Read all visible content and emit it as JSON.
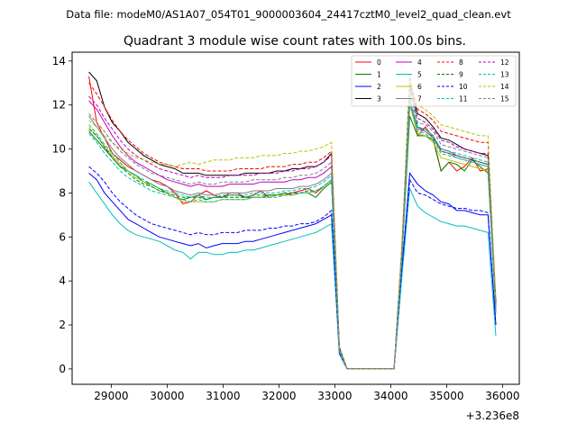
{
  "suptitle": "Data file: modeM0/AS1A07_054T01_9000003604_24417cztM0_level2_quad_clean.evt",
  "chart_data": {
    "type": "line",
    "title": "Quadrant 3 module wise count rates with 100.0s bins.",
    "xlabel": "",
    "ylabel": "",
    "x_offset_label": "+3.236e8",
    "xlim": [
      28300,
      36300
    ],
    "ylim": [
      -0.7,
      14.4
    ],
    "xticks": [
      29000,
      30000,
      31000,
      32000,
      33000,
      34000,
      35000,
      36000
    ],
    "yticks": [
      0,
      2,
      4,
      6,
      8,
      10,
      12,
      14
    ],
    "legend_position": "top-right",
    "series": [
      {
        "name": "0",
        "color": "#ff0000",
        "dash": "solid",
        "values": [
          13.3,
          11.2,
          10.5,
          9.8,
          9.5,
          9.2,
          9.0,
          8.8,
          8.6,
          8.5,
          8.3,
          8.0,
          7.5,
          7.6,
          7.9,
          8.1,
          7.9,
          7.8,
          8.0,
          8.0,
          7.8,
          7.9,
          8.1,
          7.8,
          7.9,
          7.9,
          8.0,
          8.1,
          8.2,
          8.0,
          8.3,
          8.6,
          0.8,
          0.0,
          0.0,
          0.0,
          0.0,
          0.0,
          0.0,
          0.0,
          5.0,
          12.3,
          10.6,
          11.0,
          10.5,
          9.0,
          9.4,
          9.0,
          9.2,
          9.6,
          9.0,
          9.1,
          3.0
        ]
      },
      {
        "name": "1",
        "color": "#008000",
        "dash": "solid",
        "values": [
          10.8,
          10.4,
          10.0,
          9.6,
          9.2,
          9.0,
          8.8,
          8.5,
          8.4,
          8.2,
          8.0,
          7.8,
          7.7,
          7.8,
          7.9,
          7.7,
          7.8,
          7.8,
          7.9,
          7.9,
          7.8,
          7.8,
          7.8,
          7.9,
          7.9,
          8.0,
          7.9,
          8.0,
          8.0,
          7.8,
          8.2,
          8.5,
          0.8,
          0.0,
          0.0,
          0.0,
          0.0,
          0.0,
          0.0,
          0.0,
          5.0,
          11.5,
          10.6,
          10.6,
          10.4,
          9.0,
          9.4,
          9.3,
          9.0,
          9.5,
          9.2,
          8.9,
          3.0
        ]
      },
      {
        "name": "2",
        "color": "#0000ff",
        "dash": "solid",
        "values": [
          8.9,
          8.6,
          8.0,
          7.6,
          7.2,
          6.8,
          6.6,
          6.4,
          6.2,
          6.0,
          5.9,
          5.8,
          5.7,
          5.6,
          5.7,
          5.5,
          5.6,
          5.7,
          5.7,
          5.7,
          5.8,
          5.8,
          5.9,
          6.0,
          6.1,
          6.2,
          6.3,
          6.4,
          6.5,
          6.6,
          6.8,
          7.0,
          0.7,
          0.0,
          0.0,
          0.0,
          0.0,
          0.0,
          0.0,
          0.0,
          4.5,
          8.9,
          8.4,
          8.1,
          7.9,
          7.6,
          7.5,
          7.2,
          7.2,
          7.1,
          7.0,
          7.0,
          2.0
        ]
      },
      {
        "name": "3",
        "color": "#000000",
        "dash": "solid",
        "values": [
          13.5,
          13.1,
          11.9,
          11.2,
          10.8,
          10.3,
          10.0,
          9.7,
          9.5,
          9.3,
          9.2,
          9.1,
          8.9,
          8.9,
          8.9,
          8.8,
          8.8,
          8.8,
          8.8,
          8.8,
          8.9,
          8.9,
          8.9,
          8.9,
          9.0,
          9.0,
          9.1,
          9.1,
          9.2,
          9.2,
          9.4,
          9.8,
          1.0,
          0.0,
          0.0,
          0.0,
          0.0,
          0.0,
          0.0,
          0.0,
          5.5,
          12.9,
          11.6,
          11.4,
          11.0,
          10.5,
          10.4,
          10.2,
          10.0,
          9.9,
          9.8,
          9.7,
          3.0
        ]
      },
      {
        "name": "4",
        "color": "#bf00bf",
        "dash": "solid",
        "values": [
          12.2,
          11.8,
          11.2,
          10.6,
          10.1,
          9.7,
          9.4,
          9.2,
          9.0,
          8.8,
          8.6,
          8.5,
          8.4,
          8.3,
          8.4,
          8.3,
          8.3,
          8.3,
          8.4,
          8.4,
          8.4,
          8.4,
          8.5,
          8.5,
          8.5,
          8.5,
          8.6,
          8.6,
          8.7,
          8.7,
          8.9,
          9.2,
          0.9,
          0.0,
          0.0,
          0.0,
          0.0,
          0.0,
          0.0,
          0.0,
          5.2,
          12.1,
          11.0,
          10.8,
          10.5,
          10.0,
          9.9,
          9.7,
          9.6,
          9.5,
          9.4,
          9.3,
          2.8
        ]
      },
      {
        "name": "5",
        "color": "#00bfbf",
        "dash": "solid",
        "values": [
          8.5,
          8.0,
          7.5,
          7.0,
          6.6,
          6.3,
          6.1,
          6.0,
          5.9,
          5.8,
          5.6,
          5.4,
          5.3,
          5.0,
          5.3,
          5.3,
          5.2,
          5.2,
          5.3,
          5.3,
          5.4,
          5.4,
          5.5,
          5.6,
          5.7,
          5.8,
          5.9,
          6.0,
          6.1,
          6.2,
          6.4,
          6.6,
          0.7,
          0.0,
          0.0,
          0.0,
          0.0,
          0.0,
          0.0,
          0.0,
          4.2,
          8.2,
          7.4,
          7.1,
          6.9,
          6.7,
          6.6,
          6.5,
          6.5,
          6.4,
          6.3,
          6.2,
          1.5
        ]
      },
      {
        "name": "6",
        "color": "#bfbf00",
        "dash": "solid",
        "values": [
          11.0,
          10.6,
          10.1,
          9.7,
          9.3,
          9.0,
          8.7,
          8.5,
          8.3,
          8.1,
          8.0,
          7.8,
          7.6,
          7.6,
          7.6,
          7.6,
          7.6,
          7.7,
          7.7,
          7.7,
          7.7,
          7.8,
          7.8,
          7.8,
          7.9,
          7.9,
          7.9,
          8.0,
          8.0,
          8.1,
          8.3,
          8.6,
          0.8,
          0.0,
          0.0,
          0.0,
          0.0,
          0.0,
          0.0,
          0.0,
          5.0,
          12.0,
          10.7,
          10.6,
          10.3,
          9.6,
          9.5,
          9.4,
          9.3,
          9.2,
          9.1,
          9.0,
          2.5
        ]
      },
      {
        "name": "7",
        "color": "#808080",
        "dash": "solid",
        "values": [
          11.5,
          11.0,
          10.5,
          10.0,
          9.6,
          9.3,
          9.0,
          8.8,
          8.6,
          8.4,
          8.3,
          8.1,
          8.0,
          7.9,
          8.0,
          7.9,
          7.9,
          8.0,
          8.0,
          8.0,
          8.0,
          8.1,
          8.1,
          8.1,
          8.2,
          8.2,
          8.2,
          8.3,
          8.3,
          8.4,
          8.6,
          8.9,
          0.8,
          0.0,
          0.0,
          0.0,
          0.0,
          0.0,
          0.0,
          0.0,
          5.1,
          12.2,
          10.9,
          10.8,
          10.5,
          9.9,
          9.8,
          9.6,
          9.5,
          9.4,
          9.3,
          9.2,
          2.6
        ]
      },
      {
        "name": "8",
        "color": "#ff0000",
        "dash": "dashed",
        "values": [
          13.0,
          12.5,
          11.9,
          11.3,
          10.8,
          10.4,
          10.1,
          9.8,
          9.6,
          9.4,
          9.3,
          9.2,
          9.1,
          9.1,
          9.1,
          9.0,
          9.0,
          9.0,
          9.0,
          9.1,
          9.1,
          9.1,
          9.1,
          9.2,
          9.2,
          9.2,
          9.3,
          9.3,
          9.4,
          9.4,
          9.6,
          9.9,
          1.0,
          0.0,
          0.0,
          0.0,
          0.0,
          0.0,
          0.0,
          0.0,
          5.6,
          13.0,
          11.8,
          11.6,
          11.3,
          10.8,
          10.7,
          10.6,
          10.5,
          10.4,
          10.3,
          10.3,
          3.0
        ]
      },
      {
        "name": "9",
        "color": "#008000",
        "dash": "dashed",
        "values": [
          10.9,
          10.6,
          10.1,
          9.6,
          9.2,
          8.9,
          8.6,
          8.4,
          8.3,
          8.1,
          8.0,
          7.9,
          7.8,
          7.8,
          7.8,
          7.7,
          7.8,
          7.8,
          7.8,
          7.8,
          7.8,
          7.9,
          7.9,
          7.9,
          7.9,
          8.0,
          8.0,
          8.0,
          8.1,
          8.1,
          8.3,
          8.6,
          0.8,
          0.0,
          0.0,
          0.0,
          0.0,
          0.0,
          0.0,
          0.0,
          5.2,
          13.4,
          11.0,
          10.9,
          10.6,
          9.9,
          9.8,
          9.7,
          9.6,
          9.5,
          9.4,
          9.3,
          2.8
        ]
      },
      {
        "name": "10",
        "color": "#0000ff",
        "dash": "dashed",
        "values": [
          9.2,
          8.9,
          8.5,
          8.0,
          7.6,
          7.3,
          7.0,
          6.8,
          6.6,
          6.5,
          6.4,
          6.3,
          6.2,
          6.1,
          6.2,
          6.1,
          6.1,
          6.2,
          6.2,
          6.2,
          6.3,
          6.3,
          6.3,
          6.4,
          6.4,
          6.5,
          6.5,
          6.6,
          6.6,
          6.7,
          6.9,
          7.2,
          0.7,
          0.0,
          0.0,
          0.0,
          0.0,
          0.0,
          0.0,
          0.0,
          4.6,
          8.6,
          8.0,
          7.9,
          7.7,
          7.5,
          7.4,
          7.3,
          7.3,
          7.2,
          7.2,
          7.1,
          2.0
        ]
      },
      {
        "name": "11",
        "color": "#00bfbf",
        "dash": "dashed",
        "values": [
          11.1,
          10.7,
          10.2,
          9.8,
          9.4,
          9.0,
          8.8,
          8.6,
          8.4,
          8.2,
          8.1,
          8.0,
          7.9,
          7.8,
          7.9,
          7.8,
          7.8,
          7.9,
          7.9,
          7.9,
          7.9,
          8.0,
          8.0,
          8.0,
          8.0,
          8.1,
          8.1,
          8.2,
          8.2,
          8.3,
          8.5,
          8.8,
          0.8,
          0.0,
          0.0,
          0.0,
          0.0,
          0.0,
          0.0,
          0.0,
          5.1,
          12.3,
          11.0,
          10.9,
          10.6,
          10.0,
          9.9,
          9.8,
          9.7,
          9.6,
          9.5,
          9.4,
          2.7
        ]
      },
      {
        "name": "12",
        "color": "#bf00bf",
        "dash": "dashed",
        "values": [
          12.4,
          12.0,
          11.4,
          10.9,
          10.4,
          10.0,
          9.7,
          9.5,
          9.3,
          9.1,
          9.0,
          8.9,
          8.8,
          8.7,
          8.8,
          8.7,
          8.7,
          8.7,
          8.8,
          8.8,
          8.8,
          8.8,
          8.9,
          8.9,
          8.9,
          9.0,
          9.0,
          9.1,
          9.1,
          9.2,
          9.4,
          9.7,
          0.9,
          0.0,
          0.0,
          0.0,
          0.0,
          0.0,
          0.0,
          0.0,
          5.4,
          12.7,
          11.4,
          11.2,
          10.9,
          10.4,
          10.3,
          10.1,
          10.0,
          9.9,
          9.8,
          9.8,
          2.9
        ]
      },
      {
        "name": "13",
        "color": "#00bfbf",
        "dash": "dashed",
        "values": [
          10.7,
          10.3,
          9.8,
          9.4,
          9.0,
          8.7,
          8.5,
          8.3,
          8.1,
          8.0,
          7.9,
          7.8,
          7.7,
          7.6,
          7.7,
          7.6,
          7.6,
          7.7,
          7.7,
          7.7,
          7.7,
          7.8,
          7.8,
          7.8,
          7.8,
          7.9,
          7.9,
          8.0,
          8.0,
          8.1,
          8.3,
          8.6,
          0.8,
          0.0,
          0.0,
          0.0,
          0.0,
          0.0,
          0.0,
          0.0,
          5.0,
          12.1,
          10.8,
          10.7,
          10.4,
          9.8,
          9.7,
          9.6,
          9.5,
          9.4,
          9.3,
          9.2,
          2.6
        ]
      },
      {
        "name": "14",
        "color": "#bfbf00",
        "dash": "dashed",
        "values": [
          11.3,
          11.0,
          10.6,
          10.3,
          10.0,
          9.8,
          9.6,
          9.5,
          9.4,
          9.3,
          9.3,
          9.2,
          9.3,
          9.4,
          9.3,
          9.4,
          9.5,
          9.5,
          9.5,
          9.6,
          9.6,
          9.6,
          9.7,
          9.7,
          9.7,
          9.8,
          9.8,
          9.9,
          9.9,
          10.0,
          10.1,
          10.3,
          1.0,
          0.0,
          0.0,
          0.0,
          0.0,
          0.0,
          0.0,
          0.0,
          5.7,
          13.1,
          12.0,
          11.8,
          11.5,
          11.1,
          11.0,
          10.9,
          10.8,
          10.7,
          10.6,
          10.6,
          3.2
        ]
      },
      {
        "name": "15",
        "color": "#808080",
        "dash": "dashed",
        "values": [
          11.6,
          11.2,
          10.8,
          10.3,
          9.9,
          9.6,
          9.3,
          9.1,
          8.9,
          8.8,
          8.7,
          8.6,
          8.5,
          8.4,
          8.5,
          8.4,
          8.4,
          8.5,
          8.5,
          8.5,
          8.5,
          8.6,
          8.6,
          8.6,
          8.6,
          8.7,
          8.7,
          8.8,
          8.8,
          8.9,
          9.1,
          9.4,
          0.9,
          0.0,
          0.0,
          0.0,
          0.0,
          0.0,
          0.0,
          0.0,
          5.3,
          12.5,
          11.2,
          11.1,
          10.8,
          10.2,
          10.1,
          10.0,
          9.9,
          9.8,
          9.7,
          9.6,
          2.8
        ]
      }
    ],
    "x_start": 28600,
    "x_step": 140
  }
}
